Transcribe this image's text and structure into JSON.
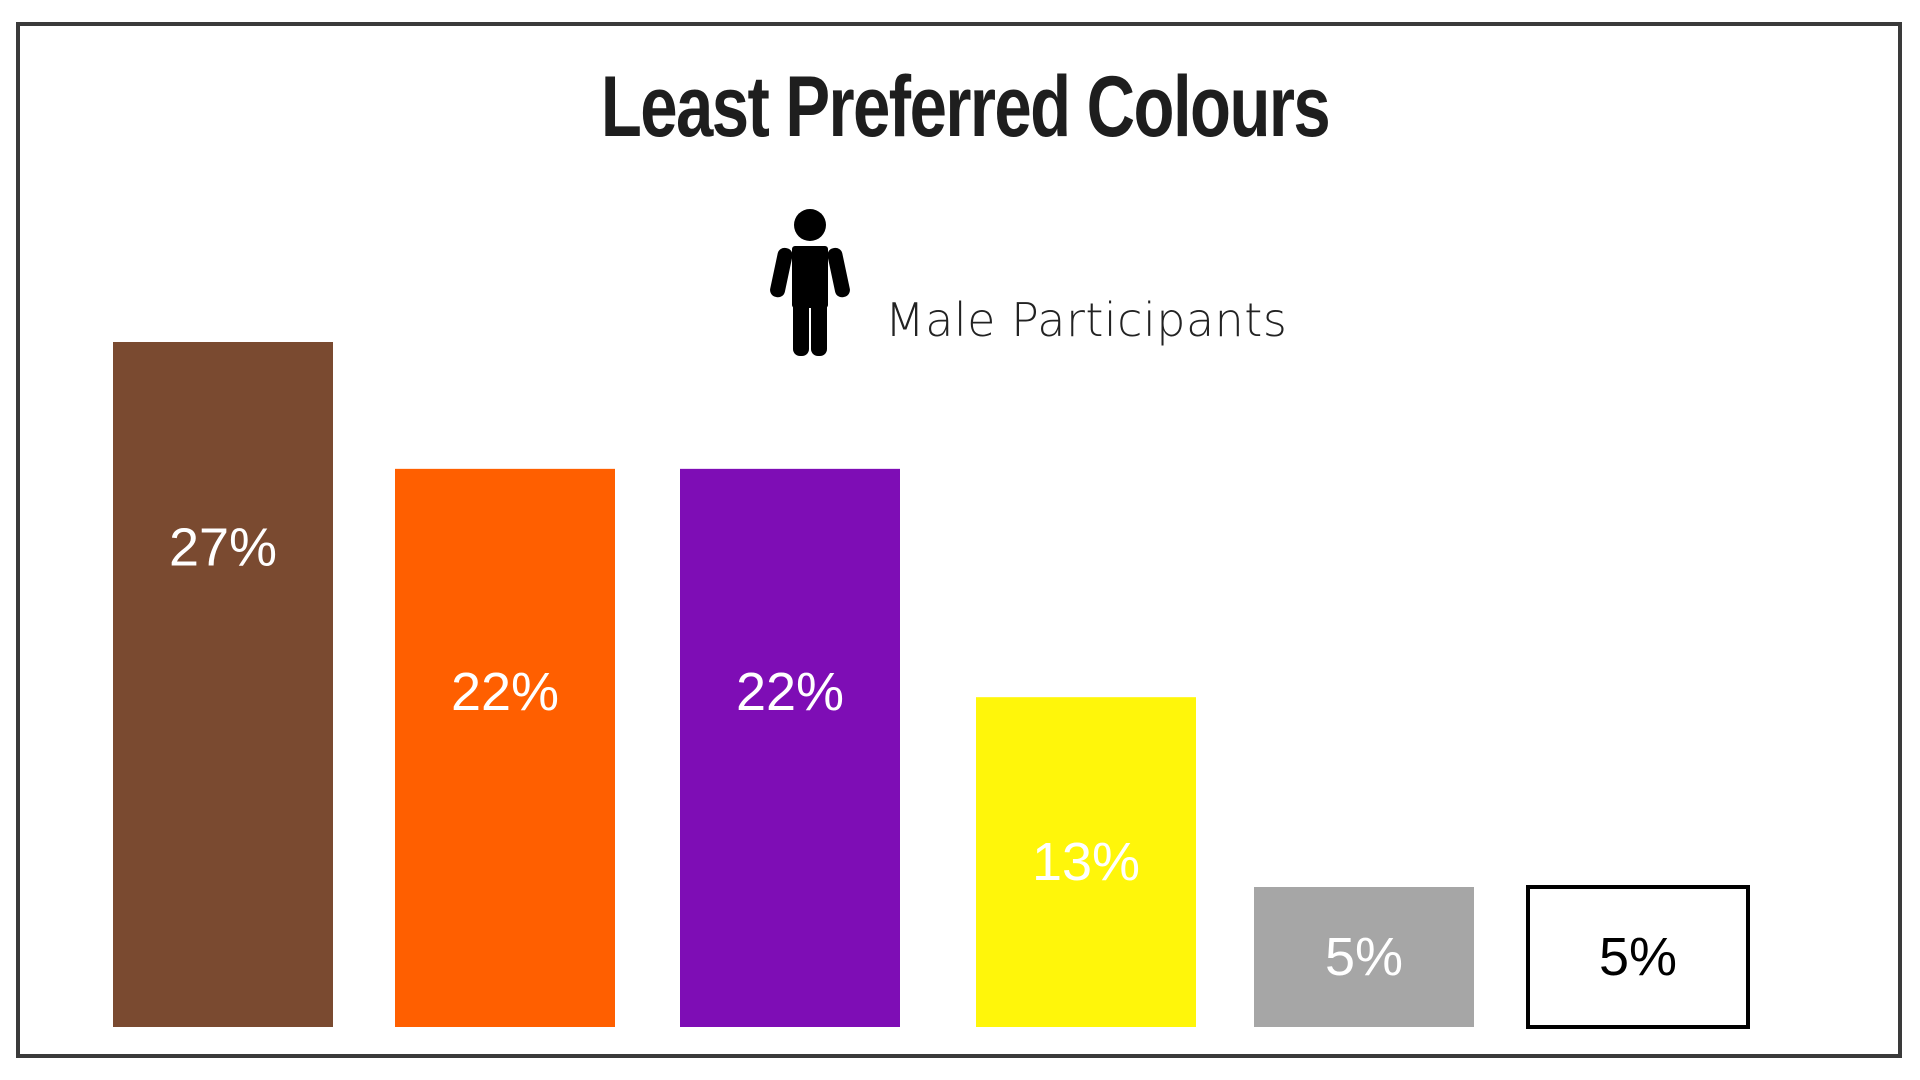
{
  "chart_data": {
    "type": "bar",
    "title": "Least Preferred Colours",
    "legend": {
      "label": "Male Participants",
      "icon": "male-person-icon"
    },
    "values": [
      27,
      22,
      22,
      13,
      5,
      5
    ],
    "value_labels": [
      "27%",
      "22%",
      "22%",
      "13%",
      "5%",
      "5%"
    ],
    "colors": [
      "#7a4a30",
      "#ff5f00",
      "#7e0db5",
      "#fff60a",
      "#a6a6a6",
      "#ffffff"
    ],
    "label_colors": [
      "#ffffff",
      "#ffffff",
      "#ffffff",
      "#ffffff",
      "#ffffff",
      "#000000"
    ],
    "outlined": [
      false,
      false,
      false,
      false,
      false,
      true
    ],
    "ylim": [
      0,
      27
    ],
    "grid": false
  }
}
